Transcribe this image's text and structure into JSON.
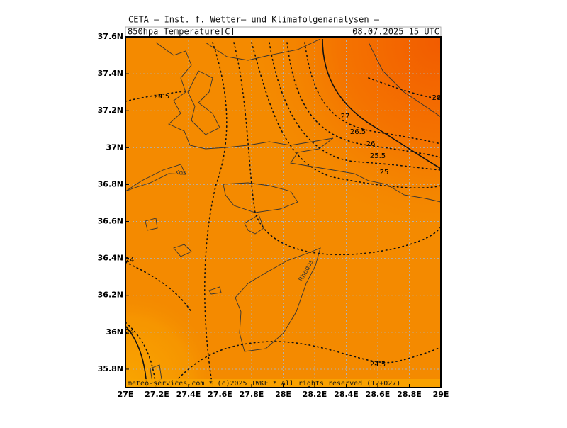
{
  "header": "CETA — Inst. f. Wetter— und Klimafolgenanalysen —",
  "title": "850hpa_Temperature[C]",
  "date": "08.07.2025 15 UTC",
  "map": {
    "xlim": [
      27,
      29
    ],
    "ylim": [
      35.7,
      37.6
    ],
    "xticks": [
      {
        "value": 27,
        "label": "27E"
      },
      {
        "value": 27.2,
        "label": "27.2E"
      },
      {
        "value": 27.4,
        "label": "27.4E"
      },
      {
        "value": 27.6,
        "label": "27.6E"
      },
      {
        "value": 27.8,
        "label": "27.8E"
      },
      {
        "value": 28,
        "label": "28E"
      },
      {
        "value": 28.2,
        "label": "28.2E"
      },
      {
        "value": 28.4,
        "label": "28.4E"
      },
      {
        "value": 28.6,
        "label": "28.6E"
      },
      {
        "value": 28.8,
        "label": "28.8E"
      },
      {
        "value": 29,
        "label": "29E"
      }
    ],
    "yticks": [
      {
        "value": 35.8,
        "label": "35.8N"
      },
      {
        "value": 36,
        "label": "36N"
      },
      {
        "value": 36.2,
        "label": "36.2N"
      },
      {
        "value": 36.4,
        "label": "36.4N"
      },
      {
        "value": 36.6,
        "label": "36.6N"
      },
      {
        "value": 36.8,
        "label": "36.8N"
      },
      {
        "value": 37,
        "label": "37N"
      },
      {
        "value": 37.2,
        "label": "37.2N"
      },
      {
        "value": 37.4,
        "label": "37.4N"
      },
      {
        "value": 37.6,
        "label": "37.6N"
      }
    ],
    "grid": true,
    "contour_labels": [
      24.5,
      27,
      26.5,
      26,
      25.5,
      25,
      28,
      24.5,
      24,
      24
    ],
    "places": [
      "Kos",
      "Rhodos"
    ]
  },
  "footer": "meteo-services.com * (c)2025 IWKF * All rights reserved (12+027)"
}
